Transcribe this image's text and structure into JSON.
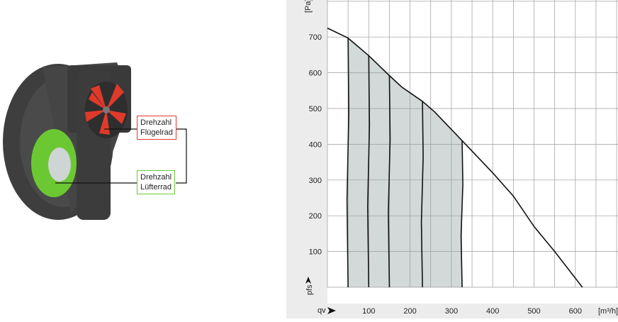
{
  "illustration": {
    "label_impeller": [
      "Drehzahl",
      "Flügelrad"
    ],
    "label_fan_wheel": [
      "Drehzahl",
      "Lüfterrad"
    ],
    "colors": {
      "impeller": "#e03a2a",
      "fan_wheel": "#6cc832",
      "housing": "#4a4a4a"
    }
  },
  "chart_data": {
    "type": "line",
    "xlabel": "qv",
    "xunit": "[m³/h]",
    "ylabel": "pfs",
    "yunit": "[Pa]",
    "xlim": [
      0,
      700
    ],
    "ylim": [
      0,
      800
    ],
    "xticks": [
      100,
      200,
      300,
      400,
      500,
      600
    ],
    "yticks": [
      100,
      200,
      300,
      400,
      500,
      600,
      700
    ],
    "grid": true,
    "characteristic_curve": {
      "x": [
        0,
        50,
        100,
        150,
        180,
        230,
        260,
        326,
        400,
        450,
        500,
        550,
        617
      ],
      "y": [
        725,
        697,
        648,
        592,
        560,
        520,
        490,
        410,
        320,
        255,
        170,
        100,
        0
      ]
    },
    "speed_lines_x": [
      50,
      100,
      150,
      230,
      326
    ],
    "operating_area_fill": "#d2d9d8"
  }
}
